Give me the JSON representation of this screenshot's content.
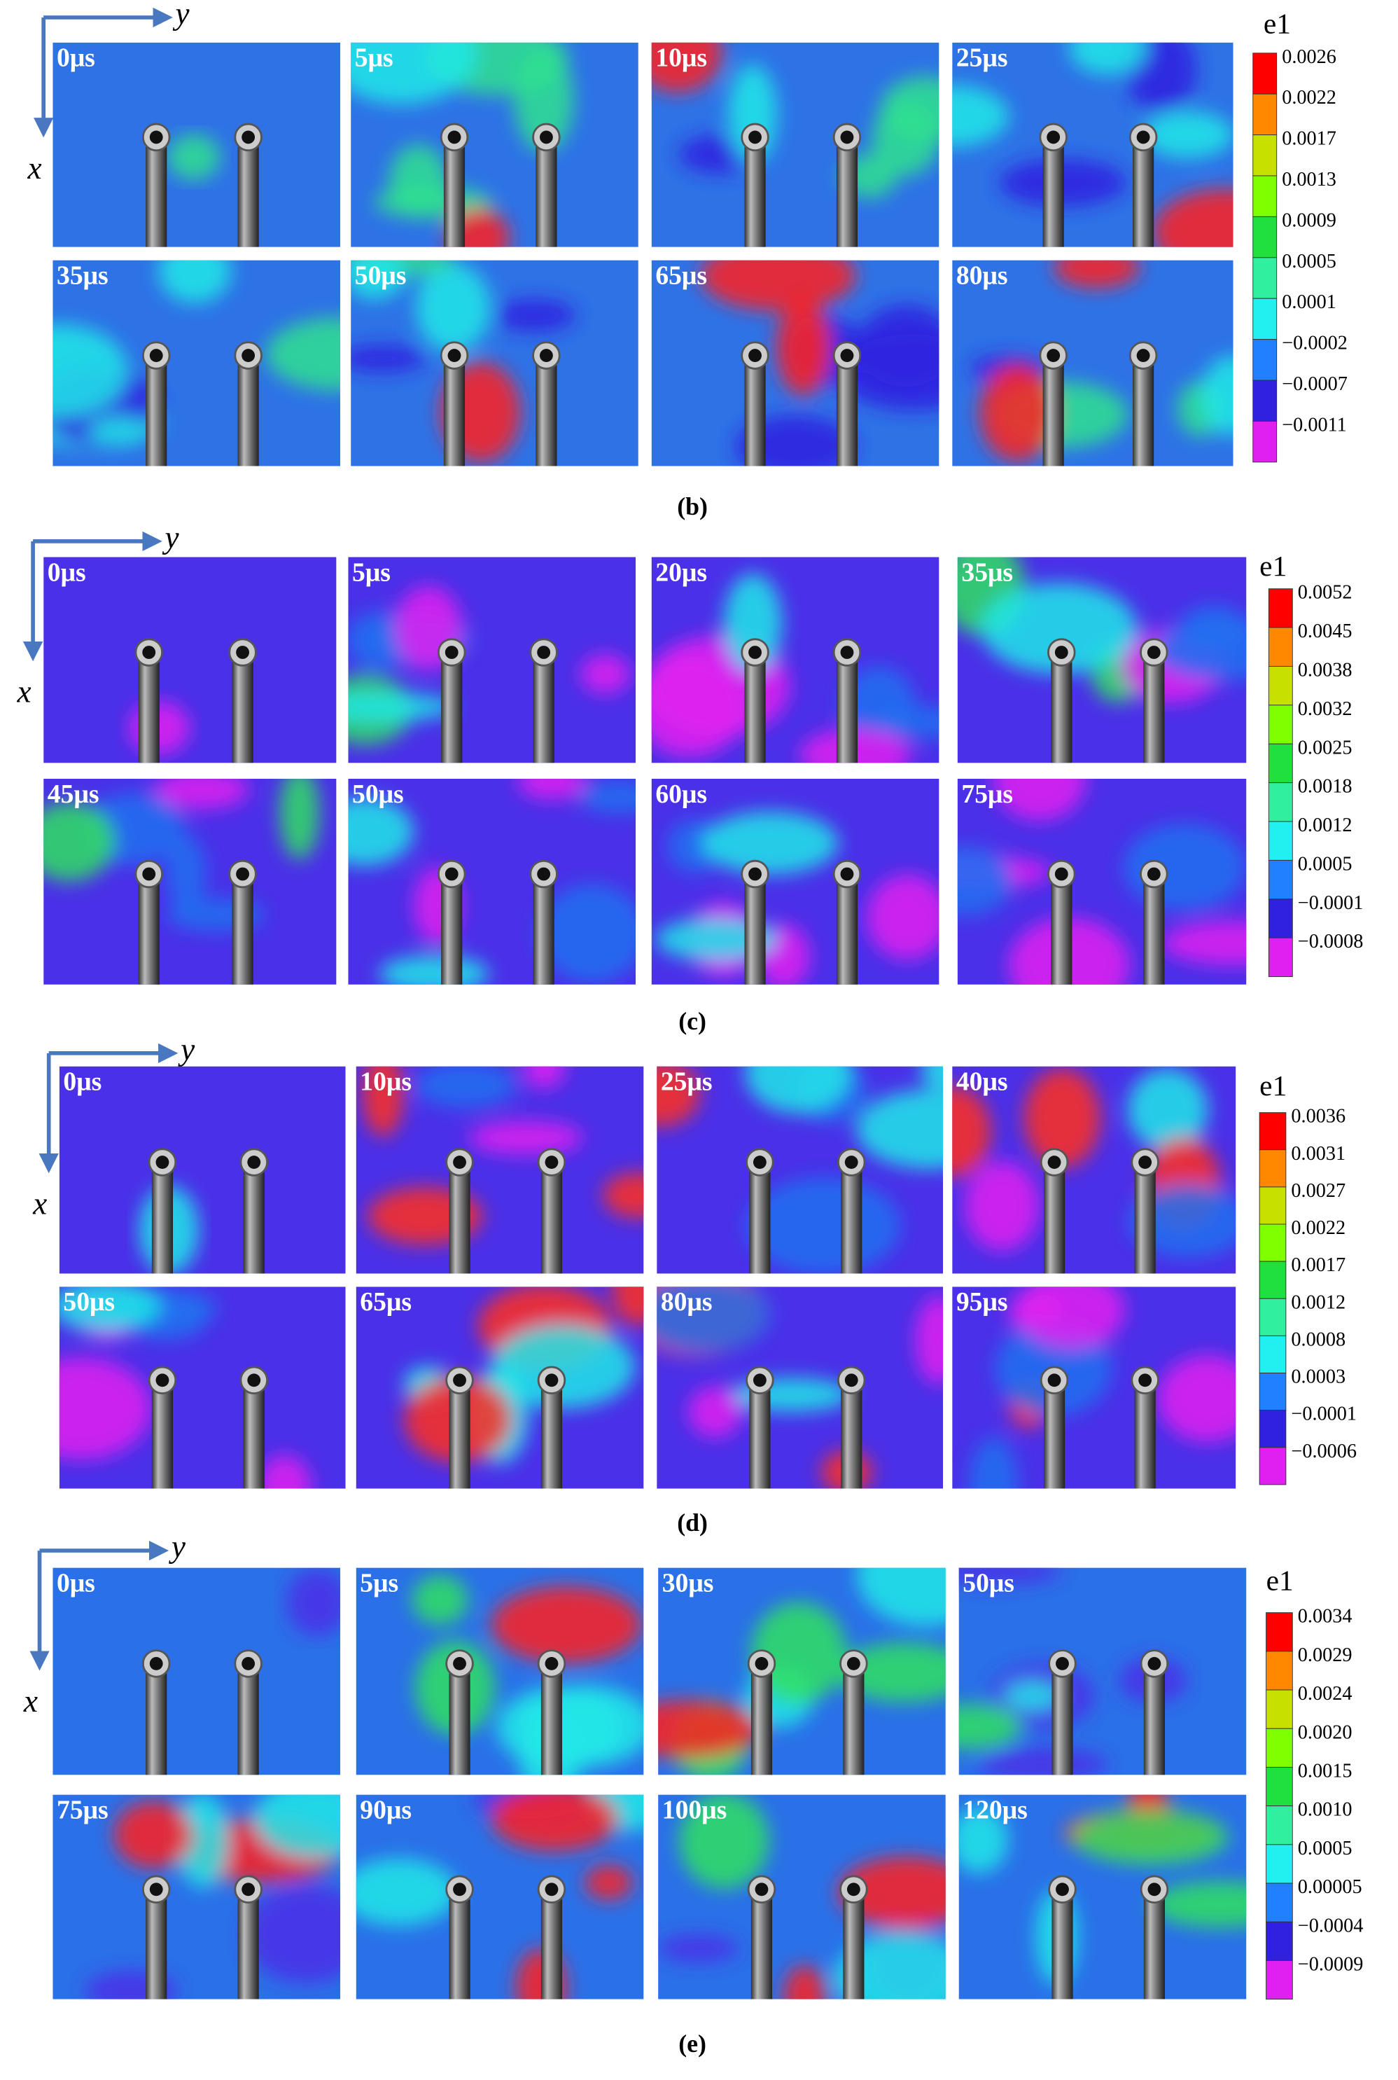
{
  "panels": [
    {
      "caption": "(b)",
      "axes": {
        "x": "x",
        "y": "y"
      },
      "frames": [
        "0μs",
        "5μs",
        "10μs",
        "25μs",
        "35μs",
        "50μs",
        "65μs",
        "80μs"
      ],
      "colorbar": {
        "title": "e1",
        "ticks": [
          "0.0026",
          "0.0022",
          "0.0017",
          "0.0013",
          "0.0009",
          "0.0005",
          "0.0001",
          "−0.0002",
          "−0.0007",
          "−0.0011"
        ]
      }
    },
    {
      "caption": "(c)",
      "axes": {
        "x": "x",
        "y": "y"
      },
      "frames": [
        "0μs",
        "5μs",
        "20μs",
        "35μs",
        "45μs",
        "50μs",
        "60μs",
        "75μs"
      ],
      "colorbar": {
        "title": "e1",
        "ticks": [
          "0.0052",
          "0.0045",
          "0.0038",
          "0.0032",
          "0.0025",
          "0.0018",
          "0.0012",
          "0.0005",
          "−0.0001",
          "−0.0008"
        ]
      }
    },
    {
      "caption": "(d)",
      "axes": {
        "x": "x",
        "y": "y"
      },
      "frames": [
        "0μs",
        "10μs",
        "25μs",
        "40μs",
        "50μs",
        "65μs",
        "80μs",
        "95μs"
      ],
      "colorbar": {
        "title": "e1",
        "ticks": [
          "0.0036",
          "0.0031",
          "0.0027",
          "0.0022",
          "0.0017",
          "0.0012",
          "0.0008",
          "0.0003",
          "−0.0001",
          "−0.0006"
        ]
      }
    },
    {
      "caption": "(e)",
      "axes": {
        "x": "x",
        "y": "y"
      },
      "frames": [
        "0μs",
        "5μs",
        "30μs",
        "50μs",
        "75μs",
        "90μs",
        "100μs",
        "120μs"
      ],
      "colorbar": {
        "title": "e1",
        "ticks": [
          "0.0034",
          "0.0029",
          "0.0024",
          "0.0020",
          "0.0015",
          "0.0010",
          "0.0005",
          "0.00005",
          "−0.0004",
          "−0.0009"
        ]
      }
    }
  ]
}
